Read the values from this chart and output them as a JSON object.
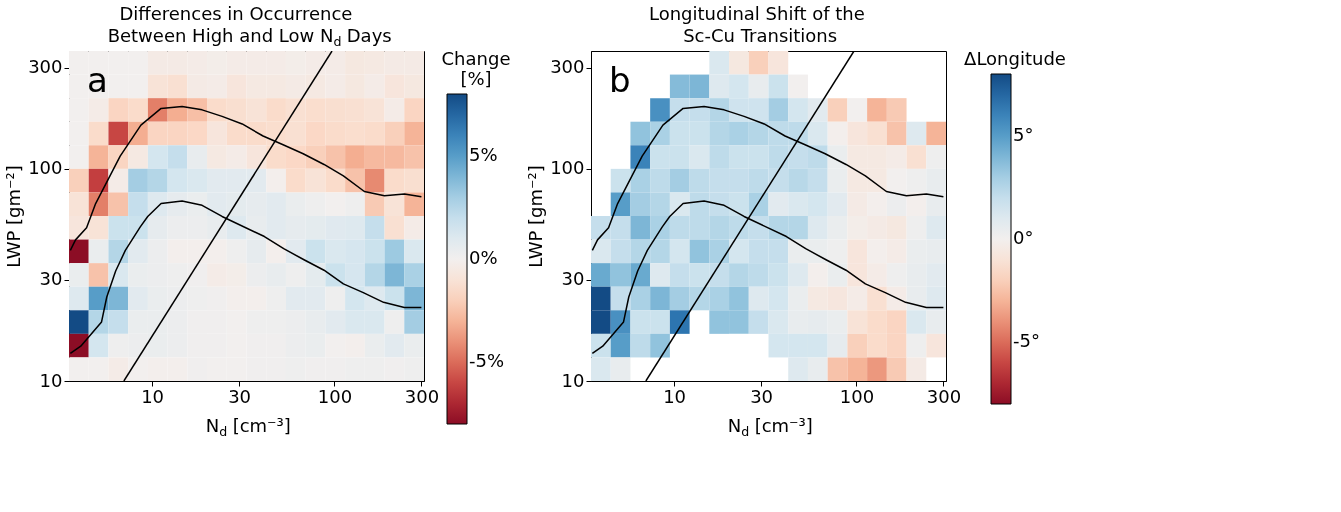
{
  "chart_data": [
    {
      "type": "heatmap",
      "title": "Differences in Occurrence\nBetween High and Low N$_{d}$ Days",
      "xlabel": "N$_{d}$ [cm⁻³]",
      "ylabel": "LWP [gm⁻²]",
      "clabel": "Change\n[%]",
      "annotations": [
        "a"
      ],
      "cells": [
        [
          0,
          0,
          0,
          0,
          -0.4,
          -0.4,
          -0.3,
          -0.2,
          -0.3,
          -0.3,
          -0.3,
          -0.2,
          -0.3,
          -0.3,
          -0.6,
          -0.5,
          -0.4,
          -0.4
        ],
        [
          0,
          0,
          0,
          0,
          -1.0,
          -1.2,
          -0.4,
          -0.3,
          -0.8,
          -0.5,
          -0.5,
          -0.4,
          -0.5,
          -0.3,
          -0.6,
          -0.3,
          -0.8,
          -0.6
        ],
        [
          0,
          -0.3,
          -1.8,
          -1.5,
          -4.5,
          -3.2,
          -2.6,
          -1.5,
          -1.3,
          -1.0,
          -1.5,
          -1.2,
          -1.4,
          -1.3,
          -1.2,
          -1.0,
          -0.3,
          -1.8
        ],
        [
          0,
          -1.5,
          -6.0,
          -3.2,
          -1.8,
          -1.8,
          -1.7,
          -0.8,
          -1.5,
          -1.5,
          -1.4,
          -1.2,
          -1.7,
          -1.5,
          -1.4,
          -1.5,
          -2.0,
          -3.0
        ],
        [
          0,
          -3.0,
          -1.8,
          -0.5,
          1.5,
          2.0,
          0.5,
          -0.5,
          -0.3,
          -0.8,
          -1.5,
          -1.7,
          -2.0,
          -2.5,
          -3.2,
          -2.8,
          -2.8,
          -2.5
        ],
        [
          -2.0,
          -6.2,
          -0.3,
          3.0,
          2.5,
          1.5,
          1.2,
          0.8,
          0.8,
          0.8,
          -0.1,
          -1.5,
          -1.0,
          -1.5,
          -2.5,
          -4.2,
          -1.5,
          -1.3
        ],
        [
          -1.0,
          -4.5,
          -2.5,
          2.0,
          1.0,
          0.6,
          0.4,
          0.8,
          0.7,
          0.6,
          0.8,
          0.4,
          0.2,
          0,
          0.2,
          -2.2,
          -1.0,
          -3.0
        ],
        [
          -0.8,
          -1.0,
          1.8,
          1.8,
          0.6,
          0.3,
          0.3,
          0.5,
          1.0,
          0.5,
          0.8,
          0.6,
          0.7,
          0.9,
          1.0,
          2.0,
          -1.2,
          -0.3
        ],
        [
          -8,
          0.4,
          2.5,
          0.8,
          0.3,
          -0.1,
          -0.1,
          -0.1,
          0.2,
          0.6,
          -0.1,
          0.8,
          1.8,
          1.2,
          1.4,
          1.8,
          3.2,
          1.2
        ],
        [
          0.4,
          -2.5,
          1.2,
          0.4,
          0.3,
          0.2,
          0.1,
          -0.3,
          -0.2,
          0.3,
          0.5,
          0.2,
          0.7,
          1.8,
          1.4,
          2.5,
          4.0,
          2.8
        ],
        [
          1.0,
          5.0,
          4.0,
          0.8,
          0.4,
          0.3,
          0.2,
          0.1,
          -0.1,
          -0.1,
          0.2,
          0.8,
          0.8,
          0.2,
          1.5,
          1.0,
          1.8,
          4.0
        ],
        [
          8,
          2.5,
          2.0,
          0.4,
          0.4,
          0.3,
          0.1,
          0.1,
          0,
          0.2,
          0.2,
          0.3,
          0.5,
          0.8,
          1.2,
          1.2,
          0.2,
          3.0
        ],
        [
          -8,
          1.5,
          0.2,
          0.3,
          0.4,
          0.3,
          0.1,
          0.1,
          0,
          0.1,
          0.1,
          0.3,
          0.4,
          0,
          -0.1,
          0.4,
          0.8,
          0.4
        ],
        [
          0,
          0,
          -0.3,
          0,
          -0.1,
          -0.1,
          0.1,
          0,
          0,
          0.1,
          0.1,
          0.2,
          0.1,
          0.1,
          0.2,
          0.2,
          0.1,
          0.2
        ]
      ],
      "clim": [
        -8,
        8
      ],
      "cticks": [
        {
          "value": 5,
          "label": "5%"
        },
        {
          "value": 0,
          "label": "0%"
        },
        {
          "value": -5,
          "label": "-5%"
        }
      ],
      "xlim": [
        3.5,
        310
      ],
      "ylim": [
        10,
        360
      ],
      "xticks": [
        10,
        30,
        100,
        300
      ],
      "yticks": [
        10,
        30,
        100,
        300
      ],
      "log": "xy",
      "series": [
        {
          "type": "line",
          "color": "#000000",
          "x": [
            3.56,
            3.8,
            4.37,
            4.9,
            6.68,
            8.68,
            11.2,
            14.6,
            18.8,
            24.2,
            31.2,
            40.6,
            52.3,
            67.4,
            87.7,
            112,
            146,
            188,
            242,
            300
          ],
          "values": [
            41.3,
            46.3,
            52.8,
            68.7,
            115,
            161,
            193,
            197,
            190,
            177,
            163,
            143,
            130,
            118,
            105,
            92.7,
            78.3,
            74.7,
            76.2,
            74.0
          ]
        },
        {
          "type": "line",
          "color": "#000000",
          "x": [
            3.56,
            4.06,
            5.28,
            5.64,
            6.31,
            7.13,
            8.61,
            9.46,
            11.2,
            14.6,
            18.8,
            24.2,
            41.3,
            52.7,
            68.1,
            87.7,
            112,
            144,
            186,
            242,
            300
          ],
          "values": [
            13.5,
            14.6,
            19.0,
            24.9,
            33.0,
            41.3,
            53.3,
            59.7,
            68.7,
            70.6,
            67.4,
            59.7,
            48.0,
            42.1,
            37.3,
            33.3,
            28.7,
            26.1,
            23.5,
            22.2,
            22.2
          ]
        },
        {
          "type": "line",
          "color": "#000000",
          "x": [
            7.0,
            97
          ],
          "values": [
            10,
            360
          ]
        }
      ]
    },
    {
      "type": "heatmap",
      "title": "Longitudinal Shift of the\nSc-Cu Transitions",
      "xlabel": "N$_{d}$ [cm⁻³]",
      "ylabel": "LWP [gm⁻²]",
      "clabel": "ΔLongitude",
      "annotations": [
        "b"
      ],
      "cells": [
        [
          null,
          null,
          null,
          null,
          null,
          null,
          1.2,
          -0.6,
          -2.0,
          -0.8,
          null,
          null,
          null,
          null,
          null,
          null,
          null,
          null
        ],
        [
          null,
          null,
          null,
          null,
          3.8,
          4.0,
          1.0,
          1.5,
          0.5,
          1.8,
          0,
          null,
          null,
          null,
          null,
          null,
          null,
          null
        ],
        [
          null,
          null,
          null,
          5.5,
          2.0,
          2.0,
          2.5,
          1.7,
          1.7,
          3.0,
          1.5,
          0.8,
          -2.0,
          0,
          -3.0,
          -2.2,
          null,
          null
        ],
        [
          null,
          null,
          3.5,
          2.8,
          1.8,
          1.8,
          2.5,
          2.8,
          2.5,
          2.2,
          2.2,
          1.2,
          -0.1,
          -0.8,
          -1.2,
          -2.5,
          1.0,
          -3.0
        ],
        [
          null,
          null,
          6.0,
          1.8,
          1.8,
          1.2,
          2.2,
          1.8,
          1.8,
          2.2,
          2.0,
          2.2,
          0.4,
          -0.5,
          -0.5,
          -0.3,
          -1.2,
          0.2
        ],
        [
          null,
          1.8,
          2.8,
          2.2,
          3.0,
          2.2,
          2.0,
          2.0,
          2.2,
          2.0,
          2.4,
          2.0,
          0.4,
          -0.5,
          -0.5,
          0,
          0.2,
          0.5
        ],
        [
          null,
          5.0,
          3.0,
          2.5,
          1.2,
          2.2,
          2.0,
          1.8,
          2.8,
          0.8,
          1.2,
          1.5,
          0.8,
          -0.4,
          -0.1,
          0.3,
          -0.1,
          0.5
        ],
        [
          2.0,
          2.0,
          4.0,
          2.8,
          2.2,
          2.2,
          2.5,
          2.2,
          2.0,
          2.5,
          2.5,
          1.0,
          0.4,
          -0.2,
          -0.4,
          -0.6,
          0.2,
          1.0
        ],
        [
          1.2,
          2.0,
          2.5,
          2.5,
          1.5,
          3.5,
          2.8,
          1.5,
          2.0,
          2.0,
          0.4,
          0.4,
          0.2,
          -0.8,
          -0.1,
          -0.3,
          0.4,
          0.5
        ],
        [
          4.5,
          3.5,
          4.5,
          1.0,
          2.0,
          1.8,
          2.0,
          2.5,
          2.2,
          1.8,
          1.0,
          -0.1,
          0.4,
          -0.8,
          -0.3,
          0.2,
          0.5,
          0.8
        ],
        [
          8,
          2.0,
          2.8,
          4.0,
          3.0,
          2.5,
          2.8,
          3.5,
          1.0,
          1.5,
          0.4,
          -0.5,
          -0.7,
          -0.3,
          -1.2,
          -0.3,
          0.5,
          1.0
        ],
        [
          8,
          5.5,
          1.8,
          1.8,
          6.5,
          null,
          3.5,
          3.5,
          2.0,
          1.2,
          0.5,
          0.6,
          0.4,
          -1.0,
          -1.5,
          -1.8,
          1.2,
          0.5
        ],
        [
          1.8,
          5.0,
          2.2,
          3.5,
          null,
          null,
          null,
          null,
          null,
          1.5,
          1.5,
          1.5,
          0.6,
          -2.0,
          -1.5,
          -1.8,
          0.2,
          -0.8
        ],
        [
          1.2,
          0.5,
          null,
          null,
          null,
          null,
          null,
          null,
          null,
          null,
          1.0,
          0.5,
          -2.5,
          -3.0,
          -3.8,
          -2.2,
          -0.4,
          null
        ]
      ],
      "clim": [
        -8,
        8
      ],
      "cticks": [
        {
          "value": 5,
          "label": "5°"
        },
        {
          "value": 0,
          "label": "0°"
        },
        {
          "value": -5,
          "label": "-5°"
        }
      ],
      "xlim": [
        3.5,
        310
      ],
      "ylim": [
        10,
        360
      ],
      "xticks": [
        10,
        30,
        100,
        300
      ],
      "yticks": [
        10,
        30,
        100,
        300
      ],
      "log": "xy",
      "series": [
        {
          "type": "line",
          "color": "#000000",
          "x": [
            3.56,
            3.8,
            4.37,
            4.9,
            6.68,
            8.68,
            11.2,
            14.6,
            18.8,
            24.2,
            31.2,
            40.6,
            52.3,
            67.4,
            87.7,
            112,
            146,
            188,
            242,
            300
          ],
          "values": [
            41.3,
            46.3,
            52.8,
            68.7,
            115,
            161,
            193,
            197,
            190,
            177,
            163,
            143,
            130,
            118,
            105,
            92.7,
            78.3,
            74.7,
            76.2,
            74.0
          ]
        },
        {
          "type": "line",
          "color": "#000000",
          "x": [
            3.56,
            4.06,
            5.28,
            5.64,
            6.31,
            7.13,
            8.61,
            9.46,
            11.2,
            14.6,
            18.8,
            24.2,
            41.3,
            52.7,
            68.1,
            87.7,
            112,
            144,
            186,
            242,
            300
          ],
          "values": [
            13.5,
            14.6,
            19.0,
            24.9,
            33.0,
            41.3,
            53.3,
            59.7,
            68.7,
            70.6,
            67.4,
            59.7,
            48.0,
            42.1,
            37.3,
            33.3,
            28.7,
            26.1,
            23.5,
            22.2,
            22.2
          ]
        },
        {
          "type": "line",
          "color": "#000000",
          "x": [
            7.0,
            97
          ],
          "values": [
            10,
            360
          ]
        }
      ]
    }
  ]
}
